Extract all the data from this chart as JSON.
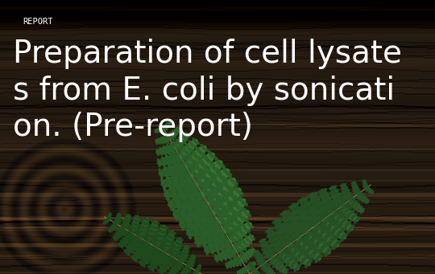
{
  "label_text": "REPORT",
  "label_color": "#ffffff",
  "label_fontsize": 7.5,
  "title_text": "Preparation of cell lysate\ns from E. coli by sonicati\non. (Pre-report)",
  "title_color": "#ffffff",
  "title_fontsize": 28,
  "figsize": [
    5.4,
    3.41
  ],
  "dpi": 100,
  "wood_base_r": 0.22,
  "wood_base_g": 0.16,
  "wood_base_b": 0.1,
  "fern_color_light": "#3a7a35",
  "fern_color_dark": "#2a5e28"
}
